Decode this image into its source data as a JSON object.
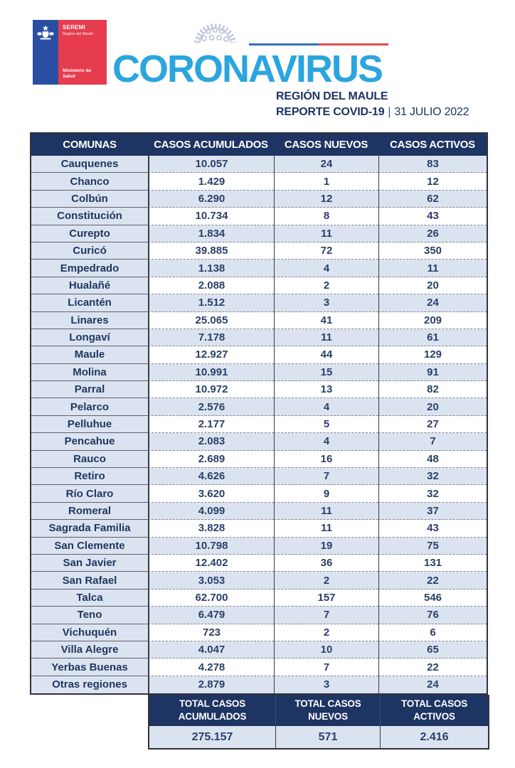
{
  "brand": {
    "logo": {
      "seremi": "SEREMI",
      "region": "Región del Maule",
      "ministry_line1": "Ministerio de",
      "ministry_line2": "Salud"
    },
    "title": "CORONAVIRUS",
    "subtitle_region": "REGIÓN DEL MAULE",
    "report_label": "REPORTE COVID-19",
    "report_separator": "|",
    "report_date": "31 JULIO 2022",
    "colors": {
      "title_blue": "#2BA5DE",
      "navy": "#1E3462",
      "row_tint": "#DBE3F1",
      "flag_blue": "#2E74B5",
      "flag_red": "#E84B4B",
      "logo_blue": "#2A4FA2",
      "logo_red": "#E73C4E"
    }
  },
  "table": {
    "headers": [
      "COMUNAS",
      "CASOS ACUMULADOS",
      "CASOS NUEVOS",
      "CASOS ACTIVOS"
    ],
    "rows": [
      {
        "comuna": "Cauquenes",
        "acumulados": "10.057",
        "nuevos": "24",
        "activos": "83"
      },
      {
        "comuna": "Chanco",
        "acumulados": "1.429",
        "nuevos": "1",
        "activos": "12"
      },
      {
        "comuna": "Colbún",
        "acumulados": "6.290",
        "nuevos": "12",
        "activos": "62"
      },
      {
        "comuna": "Constitución",
        "acumulados": "10.734",
        "nuevos": "8",
        "activos": "43"
      },
      {
        "comuna": "Curepto",
        "acumulados": "1.834",
        "nuevos": "11",
        "activos": "26"
      },
      {
        "comuna": "Curicó",
        "acumulados": "39.885",
        "nuevos": "72",
        "activos": "350"
      },
      {
        "comuna": "Empedrado",
        "acumulados": "1.138",
        "nuevos": "4",
        "activos": "11"
      },
      {
        "comuna": "Hualañé",
        "acumulados": "2.088",
        "nuevos": "2",
        "activos": "20"
      },
      {
        "comuna": "Licantén",
        "acumulados": "1.512",
        "nuevos": "3",
        "activos": "24"
      },
      {
        "comuna": "Linares",
        "acumulados": "25.065",
        "nuevos": "41",
        "activos": "209"
      },
      {
        "comuna": "Longaví",
        "acumulados": "7.178",
        "nuevos": "11",
        "activos": "61"
      },
      {
        "comuna": "Maule",
        "acumulados": "12.927",
        "nuevos": "44",
        "activos": "129"
      },
      {
        "comuna": "Molina",
        "acumulados": "10.991",
        "nuevos": "15",
        "activos": "91"
      },
      {
        "comuna": "Parral",
        "acumulados": "10.972",
        "nuevos": "13",
        "activos": "82"
      },
      {
        "comuna": "Pelarco",
        "acumulados": "2.576",
        "nuevos": "4",
        "activos": "20"
      },
      {
        "comuna": "Pelluhue",
        "acumulados": "2.177",
        "nuevos": "5",
        "activos": "27"
      },
      {
        "comuna": "Pencahue",
        "acumulados": "2.083",
        "nuevos": "4",
        "activos": "7"
      },
      {
        "comuna": "Rauco",
        "acumulados": "2.689",
        "nuevos": "16",
        "activos": "48"
      },
      {
        "comuna": "Retiro",
        "acumulados": "4.626",
        "nuevos": "7",
        "activos": "32"
      },
      {
        "comuna": "Río Claro",
        "acumulados": "3.620",
        "nuevos": "9",
        "activos": "32"
      },
      {
        "comuna": "Romeral",
        "acumulados": "4.099",
        "nuevos": "11",
        "activos": "37"
      },
      {
        "comuna": "Sagrada Familia",
        "acumulados": "3.828",
        "nuevos": "11",
        "activos": "43"
      },
      {
        "comuna": "San Clemente",
        "acumulados": "10.798",
        "nuevos": "19",
        "activos": "75"
      },
      {
        "comuna": "San Javier",
        "acumulados": "12.402",
        "nuevos": "36",
        "activos": "131"
      },
      {
        "comuna": "San Rafael",
        "acumulados": "3.053",
        "nuevos": "2",
        "activos": "22"
      },
      {
        "comuna": "Talca",
        "acumulados": "62.700",
        "nuevos": "157",
        "activos": "546"
      },
      {
        "comuna": "Teno",
        "acumulados": "6.479",
        "nuevos": "7",
        "activos": "76"
      },
      {
        "comuna": "Vichuquén",
        "acumulados": "723",
        "nuevos": "2",
        "activos": "6"
      },
      {
        "comuna": "Villa Alegre",
        "acumulados": "4.047",
        "nuevos": "10",
        "activos": "65"
      },
      {
        "comuna": "Yerbas Buenas",
        "acumulados": "4.278",
        "nuevos": "7",
        "activos": "22"
      },
      {
        "comuna": "Otras regiones",
        "acumulados": "2.879",
        "nuevos": "3",
        "activos": "24"
      }
    ],
    "totals": {
      "labels": [
        [
          "TOTAL CASOS",
          "ACUMULADOS"
        ],
        [
          "TOTAL CASOS",
          "NUEVOS"
        ],
        [
          "TOTAL CASOS",
          "ACTIVOS"
        ]
      ],
      "values": [
        "275.157",
        "571",
        "2.416"
      ]
    }
  }
}
